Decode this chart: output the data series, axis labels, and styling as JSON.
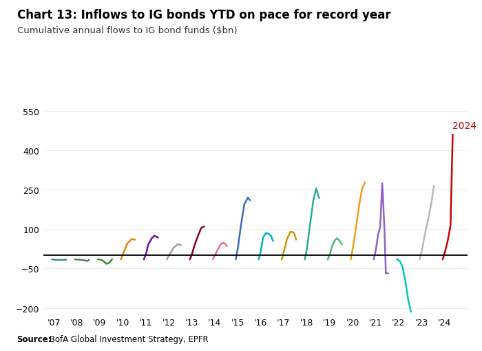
{
  "title": "Chart 13: Inflows to IG bonds YTD on pace for record year",
  "subtitle": "Cumulative annual flows to IG bond funds ($bn)",
  "source_bold": "Source:",
  "source_rest": " BofA Global Investment Strategy, EPFR",
  "ylim": [
    -230,
    600
  ],
  "yticks": [
    -200,
    -50,
    100,
    250,
    400,
    550
  ],
  "background_color": "#ffffff",
  "label_2024": "2024",
  "label_color_2024": "#cc0000",
  "zero_line_color": "#111111",
  "grid_color": "#e8e8e8",
  "series": [
    {
      "year": 2007,
      "color": "#3b8a8a",
      "xf": [
        0.0,
        0.15,
        0.35,
        0.55,
        0.75,
        1.0
      ],
      "y": [
        -15,
        -16,
        -17,
        -17,
        -17,
        -16
      ]
    },
    {
      "year": 2008,
      "color": "#5a7a5a",
      "xf": [
        0.0,
        0.2,
        0.45,
        0.7,
        0.9,
        1.0
      ],
      "y": [
        -15,
        -16,
        -17,
        -19,
        -21,
        -17
      ]
    },
    {
      "year": 2009,
      "color": "#3a8c3a",
      "xf": [
        0.0,
        0.2,
        0.4,
        0.6,
        0.8,
        1.0
      ],
      "y": [
        -15,
        -16,
        -22,
        -32,
        -28,
        -14
      ]
    },
    {
      "year": 2010,
      "color": "#e8820a",
      "xf": [
        0.0,
        0.2,
        0.45,
        0.75,
        1.0
      ],
      "y": [
        -15,
        12,
        45,
        62,
        60
      ]
    },
    {
      "year": 2011,
      "color": "#6a0dad",
      "xf": [
        0.0,
        0.15,
        0.3,
        0.55,
        0.75,
        1.0
      ],
      "y": [
        -15,
        5,
        40,
        65,
        75,
        68
      ]
    },
    {
      "year": 2012,
      "color": "#a0a0a0",
      "xf": [
        0.0,
        0.2,
        0.5,
        0.75,
        1.0
      ],
      "y": [
        -15,
        5,
        30,
        42,
        40
      ]
    },
    {
      "year": 2013,
      "color": "#8b0022",
      "xf": [
        0.0,
        0.15,
        0.35,
        0.6,
        0.8,
        1.0
      ],
      "y": [
        -15,
        5,
        42,
        78,
        105,
        110
      ]
    },
    {
      "year": 2014,
      "color": "#e87090",
      "xf": [
        0.0,
        0.15,
        0.3,
        0.55,
        0.75,
        0.9,
        1.0
      ],
      "y": [
        -15,
        0,
        18,
        42,
        48,
        42,
        35
      ]
    },
    {
      "year": 2015,
      "color": "#3a6abd",
      "xf": [
        0.0,
        0.15,
        0.35,
        0.6,
        0.85,
        1.0
      ],
      "y": [
        -15,
        30,
        110,
        195,
        220,
        210
      ]
    },
    {
      "year": 2016,
      "color": "#00b0c8",
      "xf": [
        0.0,
        0.15,
        0.3,
        0.5,
        0.7,
        0.85,
        1.0
      ],
      "y": [
        -15,
        20,
        68,
        85,
        82,
        75,
        55
      ]
    },
    {
      "year": 2017,
      "color": "#c8960a",
      "xf": [
        0.0,
        0.15,
        0.35,
        0.6,
        0.8,
        0.9,
        1.0
      ],
      "y": [
        -15,
        15,
        60,
        90,
        88,
        80,
        60
      ]
    },
    {
      "year": 2018,
      "color": "#2aaa98",
      "xf": [
        0.0,
        0.15,
        0.35,
        0.6,
        0.8,
        1.0
      ],
      "y": [
        -15,
        25,
        110,
        210,
        255,
        218
      ]
    },
    {
      "year": 2019,
      "color": "#4ab870",
      "xf": [
        0.0,
        0.15,
        0.3,
        0.5,
        0.65,
        0.8,
        1.0
      ],
      "y": [
        -15,
        5,
        35,
        58,
        65,
        58,
        42
      ]
    },
    {
      "year": 2020,
      "color": "#e8a020",
      "xf": [
        0.0,
        0.15,
        0.35,
        0.6,
        0.8,
        1.0
      ],
      "y": [
        -15,
        28,
        100,
        195,
        255,
        278
      ]
    },
    {
      "year": 2021,
      "color": "#9060c8",
      "xf": [
        0.0,
        0.15,
        0.3,
        0.45,
        0.6,
        0.75,
        0.85,
        1.0
      ],
      "y": [
        -15,
        22,
        78,
        108,
        275,
        100,
        -68,
        -68
      ]
    },
    {
      "year": 2022,
      "color": "#00c8c0",
      "xf": [
        0.0,
        0.2,
        0.4,
        0.6,
        0.8,
        1.0
      ],
      "y": [
        -15,
        -20,
        -42,
        -95,
        -168,
        -215
      ]
    },
    {
      "year": 2023,
      "color": "#b8b8b8",
      "xf": [
        0.0,
        0.15,
        0.35,
        0.6,
        0.8,
        1.0
      ],
      "y": [
        -15,
        18,
        78,
        140,
        195,
        265
      ]
    },
    {
      "year": 2024,
      "color": "#cc0000",
      "xf": [
        0.0,
        0.15,
        0.35,
        0.55,
        0.7
      ],
      "y": [
        -15,
        12,
        55,
        115,
        460
      ]
    }
  ]
}
